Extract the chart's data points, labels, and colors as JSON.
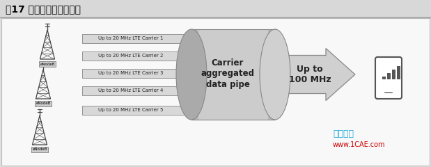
{
  "title": "图17 载波聚合原理示意图",
  "title_fontsize": 10,
  "carriers": [
    "Up to 20 MHz LTE Carrier 1",
    "Up to 20 MHz LTE Carrier 2",
    "Up to 20 MHz LTE Carrier 3",
    "Up to 20 MHz LTE Carrier 4",
    "Up to 20 MHz LTE Carrier 5"
  ],
  "cylinder_text": [
    "Carrier",
    "aggregated",
    "data pipe"
  ],
  "arrow_text_line1": "Up to",
  "arrow_text_line2": "100 MHz",
  "watermark_cn": "仿真在线",
  "watermark_url": "www.1CAE.com",
  "watermark_color_cn": "#22aadd",
  "watermark_color_url": "#cc0000",
  "bg_color": "#e8e8e8",
  "content_bg": "#f0f0f0",
  "title_bar_color": "#d0d0d0"
}
